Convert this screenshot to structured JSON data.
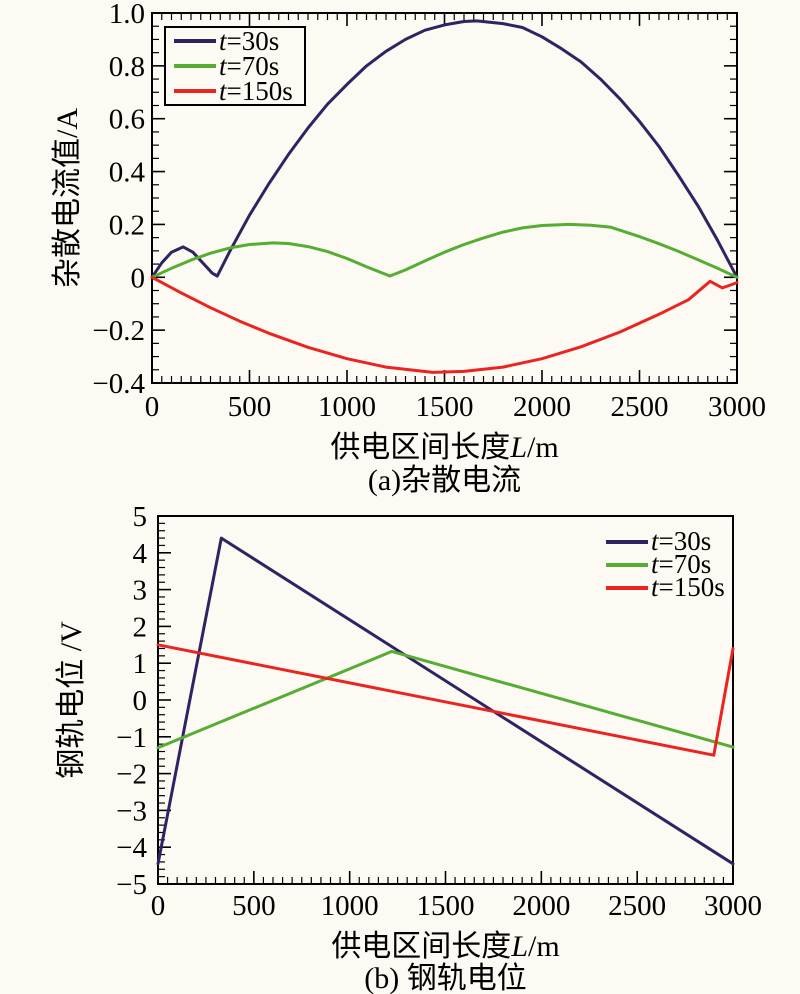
{
  "colors": {
    "series_t30": "#302364",
    "series_t70": "#55ad33",
    "series_t150": "#ea2420",
    "axis": "#000000",
    "background": "#fcfaf2"
  },
  "chart_data": [
    {
      "id": "a",
      "type": "line",
      "caption": "(a)杂散电流",
      "ylabel": "杂散电流值/A",
      "xlabel": {
        "prefix": "供电区间长度",
        "var": "L",
        "suffix": "/m"
      },
      "xlim": [
        0,
        3000
      ],
      "ylim": [
        -0.4,
        1.0
      ],
      "x_minor_step": 50,
      "y_minor_step": 0.05,
      "ticks_on_all_sides": true,
      "grid": false,
      "xticks": [
        {
          "v": 0,
          "label": "0"
        },
        {
          "v": 500,
          "label": "500"
        },
        {
          "v": 1000,
          "label": "1000"
        },
        {
          "v": 1500,
          "label": "1500"
        },
        {
          "v": 2000,
          "label": "2000"
        },
        {
          "v": 2500,
          "label": "2500"
        },
        {
          "v": 3000,
          "label": "3000"
        }
      ],
      "yticks": [
        {
          "v": -0.4,
          "label": "−0.4"
        },
        {
          "v": -0.2,
          "label": "−0.2"
        },
        {
          "v": 0,
          "label": "0"
        },
        {
          "v": 0.2,
          "label": "0.2"
        },
        {
          "v": 0.4,
          "label": "0.4"
        },
        {
          "v": 0.6,
          "label": "0.6"
        },
        {
          "v": 0.8,
          "label": "0.8"
        },
        {
          "v": 1.0,
          "label": "1.0"
        }
      ],
      "legend": {
        "position": "top-left",
        "border": true,
        "items": [
          {
            "var": "t",
            "rest": "=30s",
            "color_key": "series_t30"
          },
          {
            "var": "t",
            "rest": "=70s",
            "color_key": "series_t70"
          },
          {
            "var": "t",
            "rest": "=150s",
            "color_key": "series_t150"
          }
        ]
      },
      "series": [
        {
          "name": "t=30s",
          "color_key": "series_t30",
          "points": [
            [
              0,
              0
            ],
            [
              50,
              0.055
            ],
            [
              100,
              0.095
            ],
            [
              160,
              0.115
            ],
            [
              210,
              0.095
            ],
            [
              260,
              0.055
            ],
            [
              310,
              0.015
            ],
            [
              335,
              0.005
            ],
            [
              400,
              0.1
            ],
            [
              500,
              0.235
            ],
            [
              600,
              0.355
            ],
            [
              700,
              0.465
            ],
            [
              800,
              0.565
            ],
            [
              900,
              0.655
            ],
            [
              1000,
              0.73
            ],
            [
              1100,
              0.8
            ],
            [
              1200,
              0.855
            ],
            [
              1300,
              0.9
            ],
            [
              1400,
              0.935
            ],
            [
              1500,
              0.955
            ],
            [
              1600,
              0.968
            ],
            [
              1665,
              0.97
            ],
            [
              1800,
              0.96
            ],
            [
              1900,
              0.945
            ],
            [
              2000,
              0.91
            ],
            [
              2100,
              0.865
            ],
            [
              2200,
              0.815
            ],
            [
              2300,
              0.75
            ],
            [
              2400,
              0.675
            ],
            [
              2500,
              0.59
            ],
            [
              2600,
              0.495
            ],
            [
              2700,
              0.385
            ],
            [
              2800,
              0.27
            ],
            [
              2900,
              0.14
            ],
            [
              3000,
              0
            ]
          ]
        },
        {
          "name": "t=70s",
          "color_key": "series_t70",
          "points": [
            [
              0,
              0
            ],
            [
              100,
              0.034
            ],
            [
              200,
              0.065
            ],
            [
              300,
              0.091
            ],
            [
              400,
              0.111
            ],
            [
              500,
              0.124
            ],
            [
              620,
              0.13
            ],
            [
              700,
              0.128
            ],
            [
              800,
              0.116
            ],
            [
              900,
              0.097
            ],
            [
              1000,
              0.071
            ],
            [
              1100,
              0.04
            ],
            [
              1220,
              0.005
            ],
            [
              1300,
              0.028
            ],
            [
              1400,
              0.062
            ],
            [
              1500,
              0.095
            ],
            [
              1600,
              0.124
            ],
            [
              1700,
              0.149
            ],
            [
              1800,
              0.171
            ],
            [
              1900,
              0.187
            ],
            [
              2000,
              0.196
            ],
            [
              2140,
              0.2
            ],
            [
              2250,
              0.197
            ],
            [
              2350,
              0.19
            ],
            [
              2500,
              0.154
            ],
            [
              2600,
              0.127
            ],
            [
              2700,
              0.098
            ],
            [
              2800,
              0.066
            ],
            [
              2900,
              0.034
            ],
            [
              3000,
              0
            ]
          ]
        },
        {
          "name": "t=150s",
          "color_key": "series_t150",
          "points": [
            [
              0,
              0
            ],
            [
              150,
              -0.059
            ],
            [
              300,
              -0.115
            ],
            [
              450,
              -0.166
            ],
            [
              600,
              -0.212
            ],
            [
              800,
              -0.265
            ],
            [
              1000,
              -0.308
            ],
            [
              1200,
              -0.34
            ],
            [
              1440,
              -0.36
            ],
            [
              1600,
              -0.356
            ],
            [
              1800,
              -0.34
            ],
            [
              2000,
              -0.308
            ],
            [
              2200,
              -0.263
            ],
            [
              2400,
              -0.207
            ],
            [
              2600,
              -0.14
            ],
            [
              2750,
              -0.085
            ],
            [
              2862,
              -0.015
            ],
            [
              2925,
              -0.04
            ],
            [
              3000,
              -0.02
            ]
          ]
        }
      ]
    },
    {
      "id": "b",
      "type": "line",
      "caption": "(b) 钢轨电位",
      "ylabel": "钢轨电位 /V",
      "xlabel": {
        "prefix": "供电区间长度",
        "var": "L",
        "suffix": "/m"
      },
      "xlim": [
        0,
        3000
      ],
      "ylim": [
        -5,
        5
      ],
      "x_minor_step": 50,
      "y_minor_step": 0.2,
      "ticks_on_all_sides": false,
      "grid": false,
      "xticks": [
        {
          "v": 0,
          "label": "0"
        },
        {
          "v": 500,
          "label": "500"
        },
        {
          "v": 1000,
          "label": "1000"
        },
        {
          "v": 1500,
          "label": "1500"
        },
        {
          "v": 2000,
          "label": "2000"
        },
        {
          "v": 2500,
          "label": "2500"
        },
        {
          "v": 3000,
          "label": "3000"
        }
      ],
      "yticks": [
        {
          "v": -5,
          "label": "−5"
        },
        {
          "v": -4,
          "label": "−4"
        },
        {
          "v": -3,
          "label": "−3"
        },
        {
          "v": -2,
          "label": "−2"
        },
        {
          "v": -1,
          "label": "−1"
        },
        {
          "v": 0,
          "label": "0"
        },
        {
          "v": 1,
          "label": "1"
        },
        {
          "v": 2,
          "label": "2"
        },
        {
          "v": 3,
          "label": "3"
        },
        {
          "v": 4,
          "label": "4"
        },
        {
          "v": 5,
          "label": "5"
        }
      ],
      "legend": {
        "position": "top-right",
        "border": false,
        "items": [
          {
            "var": "t",
            "rest": "=30s",
            "color_key": "series_t30"
          },
          {
            "var": "t",
            "rest": "=70s",
            "color_key": "series_t70"
          },
          {
            "var": "t",
            "rest": "=150s",
            "color_key": "series_t150"
          }
        ]
      },
      "series": [
        {
          "name": "t=30s",
          "color_key": "series_t30",
          "points": [
            [
              0,
              -4.45
            ],
            [
              330,
              4.4
            ],
            [
              3000,
              -4.45
            ]
          ]
        },
        {
          "name": "t=70s",
          "color_key": "series_t70",
          "points": [
            [
              0,
              -1.3
            ],
            [
              1220,
              1.32
            ],
            [
              3000,
              -1.28
            ]
          ]
        },
        {
          "name": "t=150s",
          "color_key": "series_t150",
          "points": [
            [
              0,
              1.5
            ],
            [
              2900,
              -1.5
            ],
            [
              3000,
              1.4
            ]
          ]
        }
      ]
    }
  ]
}
